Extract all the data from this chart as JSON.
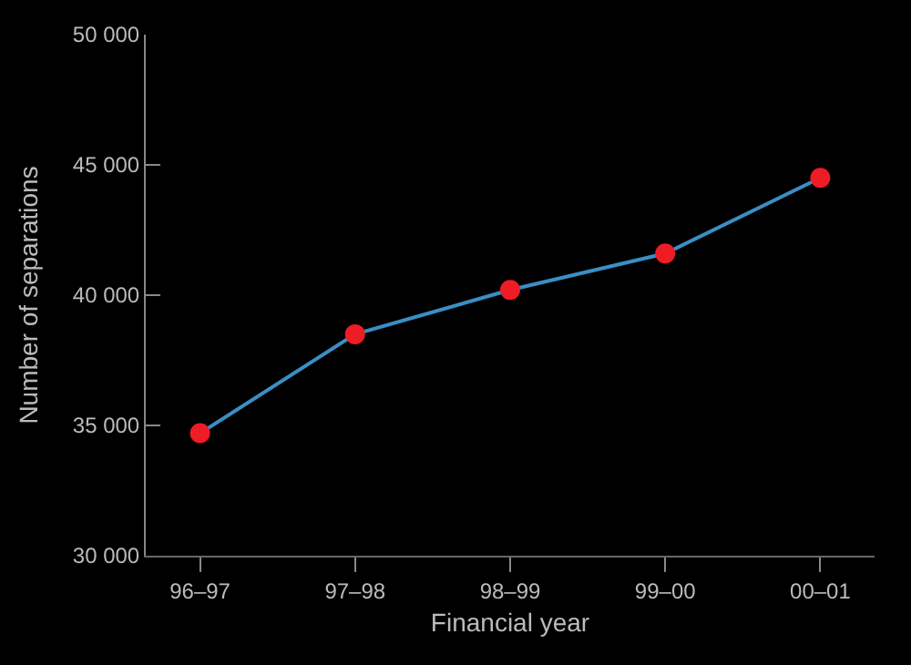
{
  "chart_data": {
    "type": "line",
    "xlabel": "Financial year",
    "ylabel": "Number of separations",
    "categories": [
      "96–97",
      "97–98",
      "98–99",
      "99–00",
      "00–01"
    ],
    "series": [
      {
        "color": "#3a8ec4",
        "colors": [
          "#ee1c25",
          "#ee1c25",
          "#ee1c25",
          "#ee1c25",
          "#ee1c25"
        ],
        "values": [
          34700,
          38500,
          40200,
          41600,
          44500
        ]
      }
    ],
    "marker": "circle",
    "ylim": [
      30000,
      50000
    ],
    "yticks": [
      {
        "value": 30000,
        "label": "30 000"
      },
      {
        "value": 35000,
        "label": "35 000"
      },
      {
        "value": 40000,
        "label": "40 000"
      },
      {
        "value": 45000,
        "label": "45 000"
      },
      {
        "value": 50000,
        "label": "50 000"
      }
    ],
    "grid": false,
    "legend": false
  }
}
